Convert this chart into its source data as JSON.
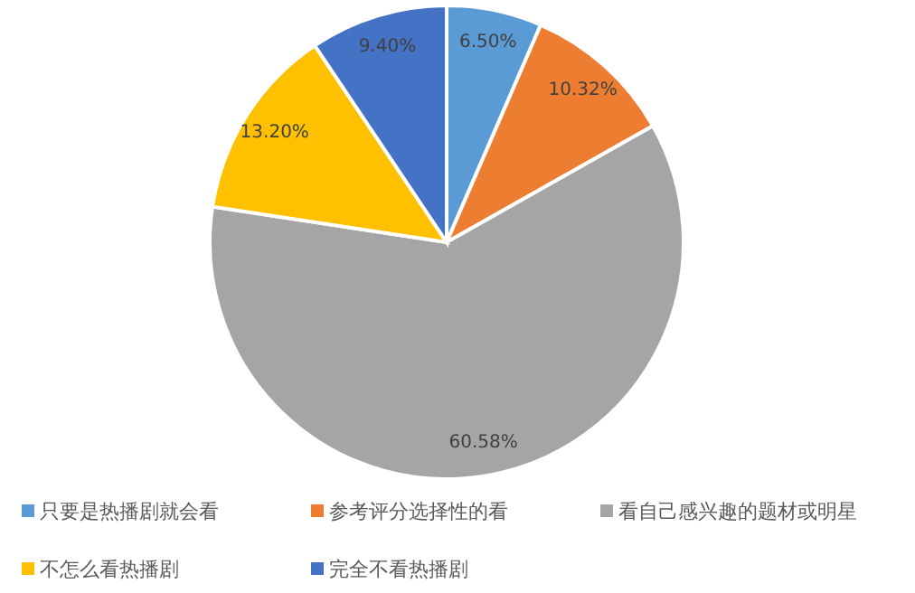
{
  "chart_data": {
    "type": "pie",
    "categories": [
      "只要是热播剧就会看",
      "参考评分选择性的看",
      "看自己感兴趣的题材或明星",
      "不怎么看热播剧",
      "完全不看热播剧"
    ],
    "values": [
      6.5,
      10.32,
      60.58,
      13.2,
      9.4
    ],
    "colors": [
      "#5b9bd5",
      "#ed7d31",
      "#a5a5a5",
      "#ffc000",
      "#4472c4"
    ],
    "value_labels": [
      "6.50%",
      "10.32%",
      "60.58%",
      "13.20%",
      "9.40%"
    ],
    "legend": "bottom"
  }
}
